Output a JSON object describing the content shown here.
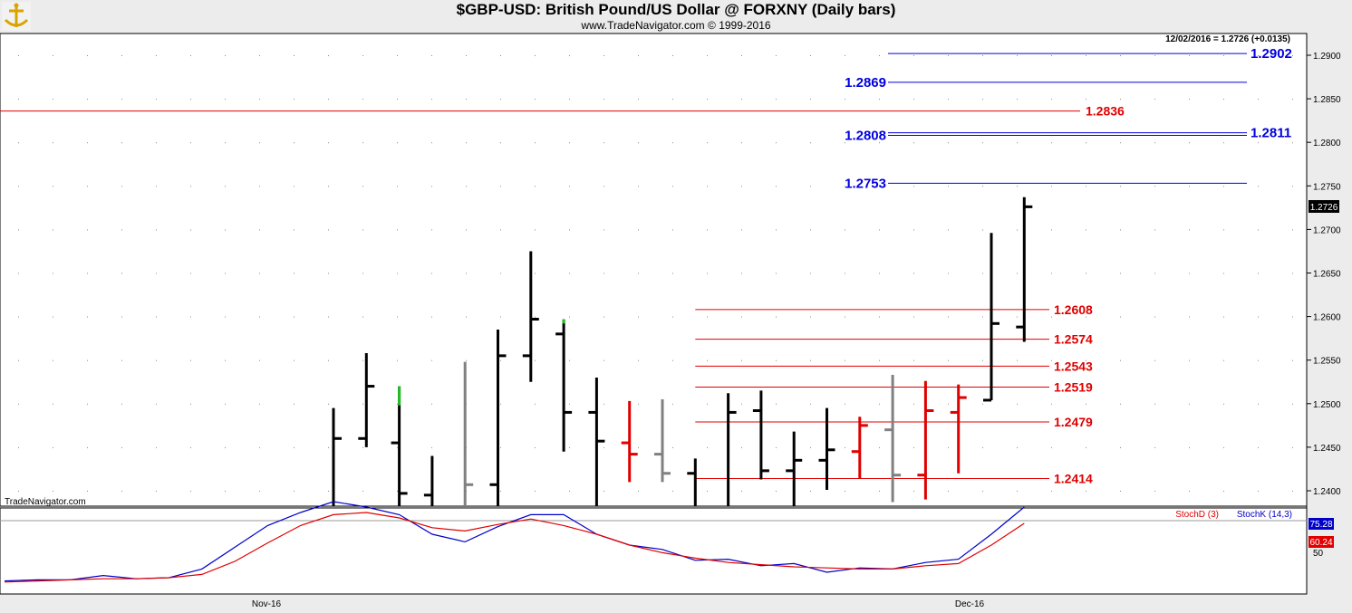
{
  "header": {
    "title": "$GBP-USD:  British Pound/US Dollar @ FORXNY  (Daily bars)",
    "copyright": "www.TradeNavigator.com © 1999-2016"
  },
  "watermark": "TradeNavigator.com",
  "last_info": "12/02/2016 = 1.2726 (+0.0135)",
  "last_value_label": "1.2726",
  "legend": {
    "stoch_d": "StochD (3)",
    "stoch_k": "StochK (14,3)"
  },
  "indicator_badges": {
    "k_value": "75.28",
    "d_value": "60.24",
    "level_label": "50"
  },
  "x_labels": [
    "Nov-16",
    "Dec-16"
  ],
  "colors": {
    "background": "#ffffff",
    "bar_black": "#000000",
    "bar_gray": "#808080",
    "bar_red": "#e00000",
    "bar_green": "#22c022",
    "level_blue": "#0000e0",
    "level_red": "#e00000",
    "stoch_k": "#0000c8",
    "stoch_d": "#e00000"
  },
  "chart_data": [
    {
      "type": "ohlc",
      "ylim": [
        1.238,
        1.292
      ],
      "yticks": [
        "1.2400",
        "1.2450",
        "1.2500",
        "1.2550",
        "1.2600",
        "1.2650",
        "1.2700",
        "1.2750",
        "1.2800",
        "1.2850",
        "1.2900"
      ],
      "bars": [
        {
          "d": 1,
          "open": 1.238,
          "high": 1.2495,
          "low": 1.238,
          "close": 1.246,
          "color": "black"
        },
        {
          "d": 2,
          "open": 1.246,
          "high": 1.2558,
          "low": 1.245,
          "close": 1.252,
          "color": "black"
        },
        {
          "d": 3,
          "open": 1.2455,
          "high": 1.252,
          "low": 1.238,
          "close": 1.2397,
          "color": "black",
          "green_top": 1.2498
        },
        {
          "d": 4,
          "open": 1.2395,
          "high": 1.244,
          "low": 1.238,
          "close": 1.238,
          "color": "black"
        },
        {
          "d": 5,
          "open": 1.238,
          "high": 1.2548,
          "low": 1.238,
          "close": 1.2407,
          "color": "gray"
        },
        {
          "d": 6,
          "open": 1.2407,
          "high": 1.2585,
          "low": 1.238,
          "close": 1.2555,
          "color": "black"
        },
        {
          "d": 7,
          "open": 1.2555,
          "high": 1.2675,
          "low": 1.2525,
          "close": 1.2597,
          "color": "black"
        },
        {
          "d": 8,
          "open": 1.258,
          "high": 1.2597,
          "low": 1.2445,
          "close": 1.249,
          "color": "black",
          "green_top": 1.2592
        },
        {
          "d": 9,
          "open": 1.249,
          "high": 1.253,
          "low": 1.238,
          "close": 1.2457,
          "color": "black"
        },
        {
          "d": 10,
          "open": 1.2455,
          "high": 1.2503,
          "low": 1.241,
          "close": 1.2442,
          "color": "red"
        },
        {
          "d": 11,
          "open": 1.2442,
          "high": 1.2505,
          "low": 1.241,
          "close": 1.242,
          "color": "gray"
        },
        {
          "d": 12,
          "open": 1.242,
          "high": 1.2437,
          "low": 1.238,
          "close": 1.238,
          "color": "black"
        },
        {
          "d": 13,
          "open": 1.238,
          "high": 1.2512,
          "low": 1.238,
          "close": 1.249,
          "color": "black"
        },
        {
          "d": 14,
          "open": 1.2492,
          "high": 1.2515,
          "low": 1.2413,
          "close": 1.2423,
          "color": "black"
        },
        {
          "d": 15,
          "open": 1.2423,
          "high": 1.2468,
          "low": 1.238,
          "close": 1.2435,
          "color": "black"
        },
        {
          "d": 16,
          "open": 1.2435,
          "high": 1.2495,
          "low": 1.2401,
          "close": 1.2447,
          "color": "black"
        },
        {
          "d": 17,
          "open": 1.2445,
          "high": 1.2485,
          "low": 1.2414,
          "close": 1.2475,
          "color": "red"
        },
        {
          "d": 18,
          "open": 1.247,
          "high": 1.2533,
          "low": 1.2387,
          "close": 1.2418,
          "color": "gray"
        },
        {
          "d": 19,
          "open": 1.2418,
          "high": 1.2526,
          "low": 1.239,
          "close": 1.2492,
          "color": "red"
        },
        {
          "d": 20,
          "open": 1.249,
          "high": 1.2522,
          "low": 1.242,
          "close": 1.2507,
          "color": "red"
        },
        {
          "d": 21,
          "open": 1.2504,
          "high": 1.2696,
          "low": 1.2504,
          "close": 1.2592,
          "color": "black"
        },
        {
          "d": 22,
          "open": 1.2588,
          "high": 1.2737,
          "low": 1.2571,
          "close": 1.2726,
          "color": "black"
        }
      ],
      "levels": [
        {
          "value": 1.2902,
          "label": "1.2902",
          "color": "blue",
          "side": "right"
        },
        {
          "value": 1.2869,
          "label": "1.2869",
          "color": "blue",
          "side": "left"
        },
        {
          "value": 1.2836,
          "label": "1.2836",
          "color": "red",
          "side": "right-mid",
          "full": true
        },
        {
          "value": 1.2811,
          "label": "1.2811",
          "color": "blue",
          "side": "right"
        },
        {
          "value": 1.2808,
          "label": "1.2808",
          "color": "blue",
          "side": "left"
        },
        {
          "value": 1.2753,
          "label": "1.2753",
          "color": "blue",
          "side": "left"
        },
        {
          "value": 1.2608,
          "label": "1.2608",
          "color": "red",
          "side": "end"
        },
        {
          "value": 1.2574,
          "label": "1.2574",
          "color": "red",
          "side": "end"
        },
        {
          "value": 1.2543,
          "label": "1.2543",
          "color": "red",
          "side": "end"
        },
        {
          "value": 1.2519,
          "label": "1.2519",
          "color": "red",
          "side": "end"
        },
        {
          "value": 1.2479,
          "label": "1.2479",
          "color": "red",
          "side": "end"
        },
        {
          "value": 1.2414,
          "label": "1.2414",
          "color": "red",
          "side": "end"
        }
      ]
    },
    {
      "type": "line",
      "ylim": [
        0,
        100
      ],
      "series": [
        {
          "name": "StochK (14,3)",
          "values": [
            {
              "d": -9,
              "v": 7
            },
            {
              "d": -8,
              "v": 8
            },
            {
              "d": -7,
              "v": 8
            },
            {
              "d": -6,
              "v": 12
            },
            {
              "d": -5,
              "v": 9
            },
            {
              "d": -4,
              "v": 10
            },
            {
              "d": -3,
              "v": 18
            },
            {
              "d": -2,
              "v": 38
            },
            {
              "d": -1,
              "v": 58
            },
            {
              "d": 0,
              "v": 70
            },
            {
              "d": 1,
              "v": 80
            },
            {
              "d": 2,
              "v": 75
            },
            {
              "d": 3,
              "v": 68
            },
            {
              "d": 4,
              "v": 50
            },
            {
              "d": 5,
              "v": 43
            },
            {
              "d": 6,
              "v": 57
            },
            {
              "d": 7,
              "v": 68
            },
            {
              "d": 8,
              "v": 68
            },
            {
              "d": 9,
              "v": 50
            },
            {
              "d": 10,
              "v": 40
            },
            {
              "d": 11,
              "v": 36
            },
            {
              "d": 12,
              "v": 26
            },
            {
              "d": 13,
              "v": 27
            },
            {
              "d": 14,
              "v": 21
            },
            {
              "d": 15,
              "v": 23
            },
            {
              "d": 16,
              "v": 15
            },
            {
              "d": 17,
              "v": 19
            },
            {
              "d": 18,
              "v": 18
            },
            {
              "d": 19,
              "v": 24
            },
            {
              "d": 20,
              "v": 27
            },
            {
              "d": 21,
              "v": 50
            },
            {
              "d": 22,
              "v": 75
            }
          ]
        },
        {
          "name": "StochD (3)",
          "values": [
            {
              "d": -9,
              "v": 6
            },
            {
              "d": -8,
              "v": 7
            },
            {
              "d": -7,
              "v": 8
            },
            {
              "d": -6,
              "v": 9
            },
            {
              "d": -5,
              "v": 9
            },
            {
              "d": -4,
              "v": 10
            },
            {
              "d": -3,
              "v": 13
            },
            {
              "d": -2,
              "v": 25
            },
            {
              "d": -1,
              "v": 42
            },
            {
              "d": 0,
              "v": 58
            },
            {
              "d": 1,
              "v": 68
            },
            {
              "d": 2,
              "v": 70
            },
            {
              "d": 3,
              "v": 65
            },
            {
              "d": 4,
              "v": 56
            },
            {
              "d": 5,
              "v": 53
            },
            {
              "d": 6,
              "v": 59
            },
            {
              "d": 7,
              "v": 64
            },
            {
              "d": 8,
              "v": 58
            },
            {
              "d": 9,
              "v": 50
            },
            {
              "d": 10,
              "v": 40
            },
            {
              "d": 11,
              "v": 33
            },
            {
              "d": 12,
              "v": 28
            },
            {
              "d": 13,
              "v": 24
            },
            {
              "d": 14,
              "v": 22
            },
            {
              "d": 15,
              "v": 20
            },
            {
              "d": 16,
              "v": 19
            },
            {
              "d": 17,
              "v": 18
            },
            {
              "d": 18,
              "v": 18
            },
            {
              "d": 19,
              "v": 21
            },
            {
              "d": 20,
              "v": 23
            },
            {
              "d": 21,
              "v": 40
            },
            {
              "d": 22,
              "v": 60
            }
          ]
        }
      ]
    }
  ]
}
